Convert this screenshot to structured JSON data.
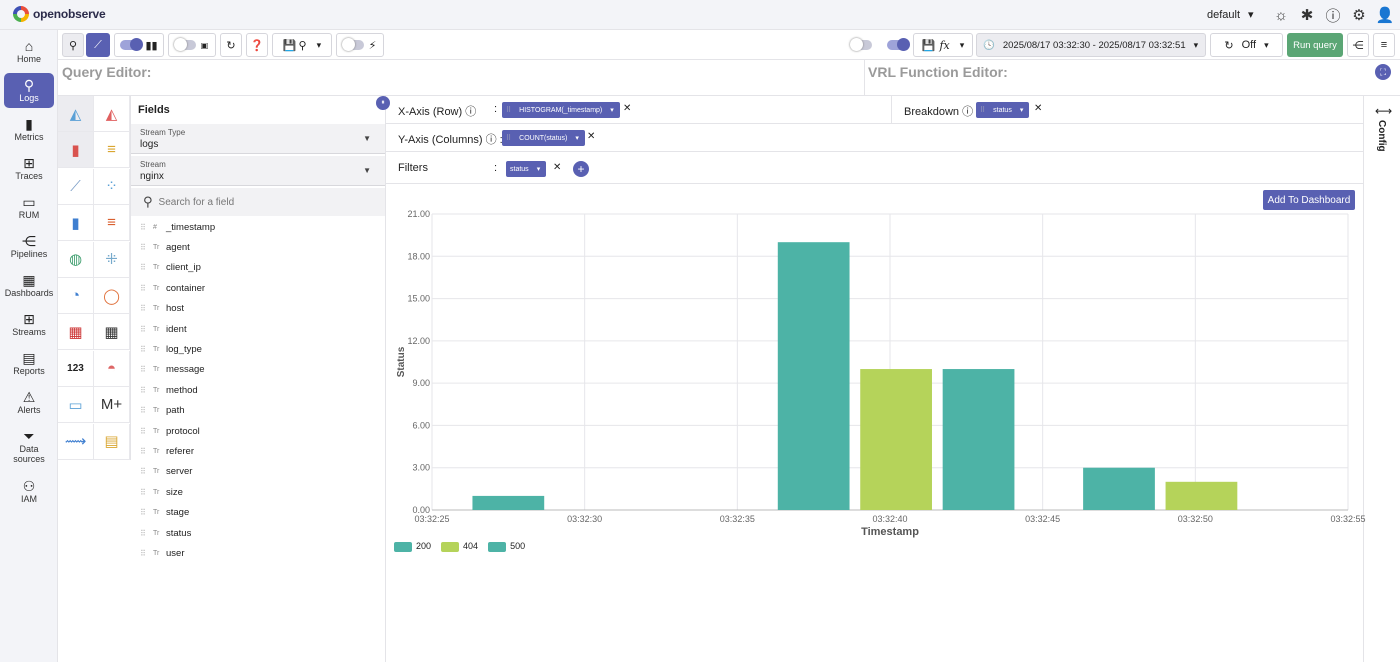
{
  "app": {
    "brand": "openobserve",
    "org": "default"
  },
  "nav": [
    {
      "label": "Home",
      "icon": "home-icon"
    },
    {
      "label": "Logs",
      "icon": "search-icon"
    },
    {
      "label": "Metrics",
      "icon": "bar-chart-icon"
    },
    {
      "label": "Traces",
      "icon": "tree-icon"
    },
    {
      "label": "RUM",
      "icon": "devices-icon"
    },
    {
      "label": "Pipelines",
      "icon": "share-icon"
    },
    {
      "label": "Dashboards",
      "icon": "grid-icon"
    },
    {
      "label": "Streams",
      "icon": "table-icon"
    },
    {
      "label": "Reports",
      "icon": "document-icon"
    },
    {
      "label": "Alerts",
      "icon": "warning-icon"
    },
    {
      "label": "Data sources",
      "icon": "filter-icon"
    },
    {
      "label": "IAM",
      "icon": "users-icon"
    }
  ],
  "toolbar": {
    "daterange": "2025/08/17 03:32:30 - 2025/08/17 03:32:51",
    "refresh": "Off",
    "run_query": "Run query"
  },
  "editors": {
    "query": "Query Editor:",
    "vrl": "VRL Function Editor:"
  },
  "fields_panel": {
    "title": "Fields",
    "stream_type_label": "Stream Type",
    "stream_type_value": "logs",
    "stream_label": "Stream",
    "stream_value": "nginx",
    "search_placeholder": "Search for a field",
    "items": [
      {
        "name": "_timestamp",
        "type": "#"
      },
      {
        "name": "agent",
        "type": "Tr"
      },
      {
        "name": "client_ip",
        "type": "Tr"
      },
      {
        "name": "container",
        "type": "Tr"
      },
      {
        "name": "host",
        "type": "Tr"
      },
      {
        "name": "ident",
        "type": "Tr"
      },
      {
        "name": "log_type",
        "type": "Tr"
      },
      {
        "name": "message",
        "type": "Tr"
      },
      {
        "name": "method",
        "type": "Tr"
      },
      {
        "name": "path",
        "type": "Tr"
      },
      {
        "name": "protocol",
        "type": "Tr"
      },
      {
        "name": "referer",
        "type": "Tr"
      },
      {
        "name": "server",
        "type": "Tr"
      },
      {
        "name": "size",
        "type": "Tr"
      },
      {
        "name": "stage",
        "type": "Tr"
      },
      {
        "name": "status",
        "type": "Tr"
      },
      {
        "name": "user",
        "type": "Tr"
      }
    ]
  },
  "axes": {
    "x_label": "X-Axis (Row)",
    "x_chip": "HISTOGRAM(_timestamp)",
    "breakdown_label": "Breakdown",
    "breakdown_chip": "status",
    "y_label": "Y-Axis (Columns)",
    "y_chip": "COUNT(status)",
    "filters_label": "Filters",
    "filters_chip": "status",
    "add_dashboard": "Add To Dashboard",
    "config": "Config"
  },
  "colors": {
    "accent": "#5960b2",
    "run": "#5ba675",
    "s200": "#4db3a6",
    "s404": "#b5d35a",
    "s500": "#4db3a6"
  },
  "chart_data": {
    "type": "bar",
    "xlabel": "Timestamp",
    "ylabel": "Status",
    "ylim": [
      0,
      21
    ],
    "yticks": [
      "0.00",
      "3.00",
      "6.00",
      "9.00",
      "12.00",
      "15.00",
      "18.00",
      "21.00"
    ],
    "xticks": [
      "03:32:25",
      "03:32:30",
      "03:32:35",
      "03:32:40",
      "03:32:45",
      "03:32:50",
      "03:32:55"
    ],
    "xlim_seconds": [
      25,
      55
    ],
    "bars": [
      {
        "t": 27.5,
        "value": 1,
        "series": "200"
      },
      {
        "t": 37.5,
        "value": 19,
        "series": "200"
      },
      {
        "t": 40.2,
        "value": 10,
        "series": "404"
      },
      {
        "t": 42.9,
        "value": 10,
        "series": "500"
      },
      {
        "t": 47.5,
        "value": 3,
        "series": "500"
      },
      {
        "t": 50.2,
        "value": 2,
        "series": "404"
      }
    ],
    "legend": [
      {
        "name": "200",
        "color": "#4db3a6"
      },
      {
        "name": "404",
        "color": "#b5d35a"
      },
      {
        "name": "500",
        "color": "#4db3a6"
      }
    ]
  }
}
